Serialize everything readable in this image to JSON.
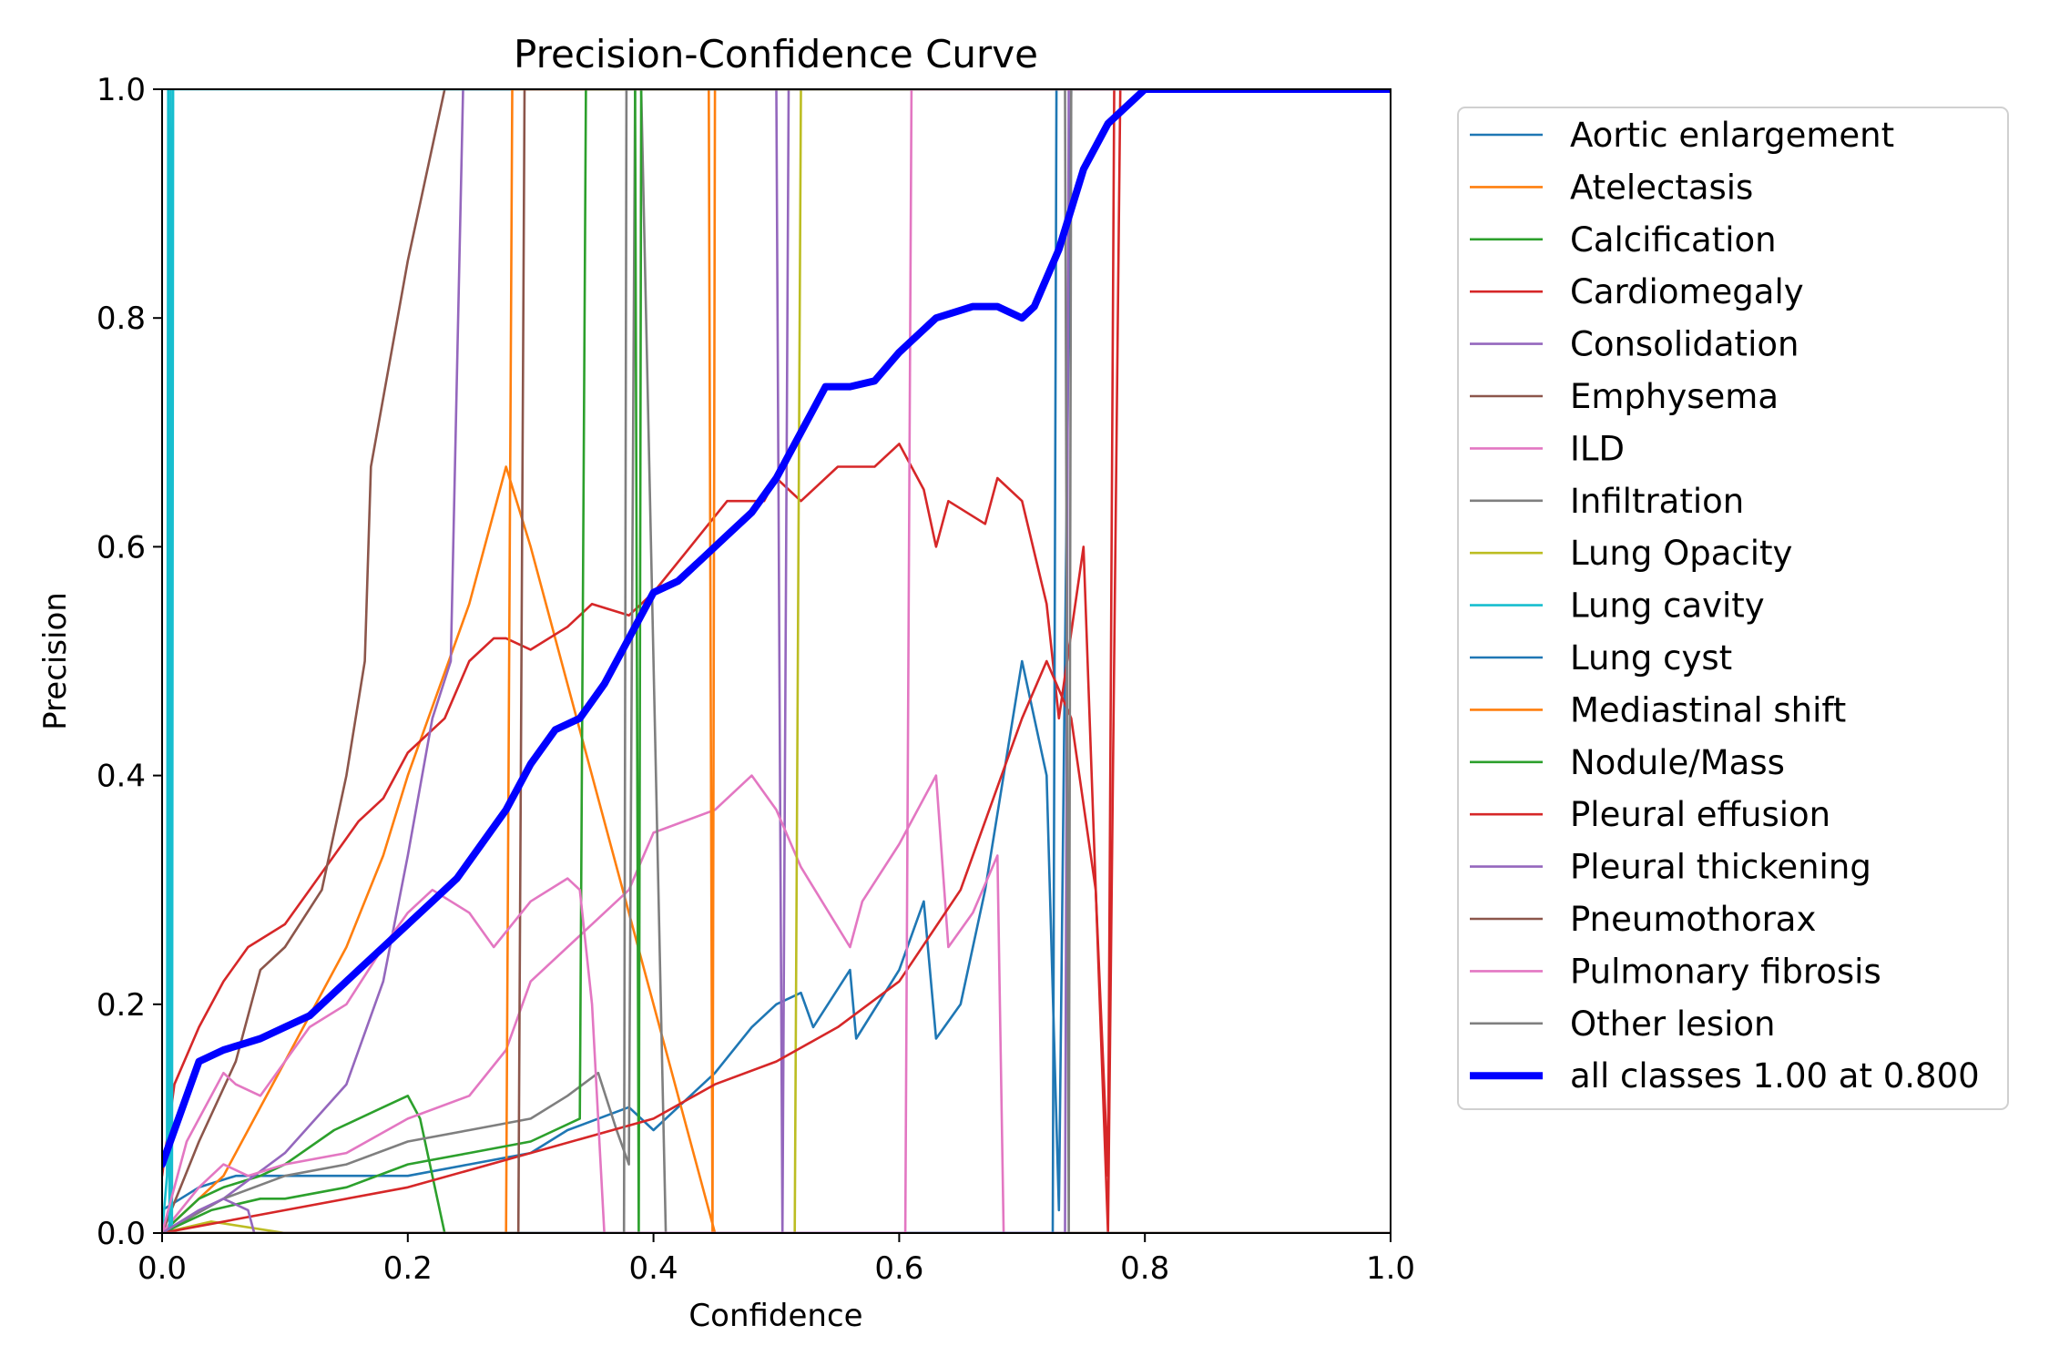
{
  "chart_data": {
    "type": "line",
    "title": "Precision-Confidence Curve",
    "xlabel": "Confidence",
    "ylabel": "Precision",
    "xlim": [
      0,
      1
    ],
    "ylim": [
      0,
      1
    ],
    "x_ticks": [
      0.0,
      0.2,
      0.4,
      0.6,
      0.8,
      1.0
    ],
    "y_ticks": [
      0.0,
      0.2,
      0.4,
      0.6,
      0.8,
      1.0
    ],
    "x_tick_labels": [
      "0.0",
      "0.2",
      "0.4",
      "0.6",
      "0.8",
      "1.0"
    ],
    "y_tick_labels": [
      "0.0",
      "0.2",
      "0.4",
      "0.6",
      "0.8",
      "1.0"
    ],
    "grid": false,
    "legend_position": "outside-right",
    "series": [
      {
        "name": "Aortic enlargement",
        "color": "#1f77b4",
        "x": [
          0.0,
          0.03,
          0.06,
          0.1,
          0.15,
          0.2,
          0.25,
          0.3,
          0.33,
          0.38,
          0.4,
          0.42,
          0.45,
          0.48,
          0.5,
          0.52,
          0.53,
          0.56,
          0.565,
          0.6,
          0.62,
          0.63,
          0.65,
          0.67,
          0.7,
          0.72,
          0.73,
          0.74,
          0.75,
          0.8,
          1.0
        ],
        "y": [
          0.02,
          0.04,
          0.05,
          0.05,
          0.05,
          0.05,
          0.06,
          0.07,
          0.09,
          0.11,
          0.09,
          0.11,
          0.14,
          0.18,
          0.2,
          0.21,
          0.18,
          0.23,
          0.17,
          0.23,
          0.29,
          0.17,
          0.2,
          0.3,
          0.5,
          0.4,
          0.02,
          1.0,
          1.0,
          1.0,
          1.0
        ]
      },
      {
        "name": "Atelectasis",
        "color": "#ff7f0e",
        "x": [
          0.0,
          0.05,
          0.1,
          0.15,
          0.18,
          0.2,
          0.25,
          0.28,
          0.3,
          0.35,
          0.4,
          0.45,
          0.46,
          1.0
        ],
        "y": [
          0.0,
          0.05,
          0.15,
          0.25,
          0.33,
          0.4,
          0.55,
          0.67,
          0.6,
          0.4,
          0.2,
          0.0,
          0.0,
          0.0
        ]
      },
      {
        "name": "Calcification",
        "color": "#2ca02c",
        "x": [
          0.0,
          0.03,
          0.05,
          0.08,
          0.1,
          0.14,
          0.18,
          0.2,
          0.21,
          0.23,
          0.25,
          1.0
        ],
        "y": [
          0.0,
          0.03,
          0.04,
          0.05,
          0.06,
          0.09,
          0.11,
          0.12,
          0.1,
          0.0,
          0.0,
          0.0
        ]
      },
      {
        "name": "Cardiomegaly",
        "color": "#d62728",
        "x": [
          0.0,
          0.01,
          0.03,
          0.05,
          0.07,
          0.1,
          0.12,
          0.14,
          0.16,
          0.18,
          0.2,
          0.23,
          0.25,
          0.27,
          0.28,
          0.3,
          0.33,
          0.35,
          0.38,
          0.4,
          0.43,
          0.46,
          0.49,
          0.5,
          0.52,
          0.55,
          0.58,
          0.6,
          0.62,
          0.63,
          0.64,
          0.67,
          0.68,
          0.7,
          0.72,
          0.73,
          0.75,
          0.77,
          0.78,
          0.8,
          1.0
        ],
        "y": [
          0.05,
          0.13,
          0.18,
          0.22,
          0.25,
          0.27,
          0.3,
          0.33,
          0.36,
          0.38,
          0.42,
          0.45,
          0.5,
          0.52,
          0.52,
          0.51,
          0.53,
          0.55,
          0.54,
          0.56,
          0.6,
          0.64,
          0.64,
          0.66,
          0.64,
          0.67,
          0.67,
          0.69,
          0.65,
          0.6,
          0.64,
          0.62,
          0.66,
          0.64,
          0.55,
          0.45,
          0.6,
          0.0,
          1.0,
          1.0,
          1.0
        ]
      },
      {
        "name": "Consolidation",
        "color": "#9467bd",
        "x": [
          0.0,
          0.05,
          0.1,
          0.15,
          0.18,
          0.2,
          0.22,
          0.235,
          0.245,
          0.26,
          0.3,
          0.5,
          0.505,
          0.51,
          0.6,
          0.8,
          1.0
        ],
        "y": [
          0.0,
          0.03,
          0.07,
          0.13,
          0.22,
          0.33,
          0.45,
          0.5,
          1.0,
          1.0,
          1.0,
          1.0,
          0.0,
          1.0,
          1.0,
          1.0,
          1.0
        ]
      },
      {
        "name": "Emphysema",
        "color": "#8c564b",
        "x": [
          0.0,
          0.03,
          0.06,
          0.08,
          0.1,
          0.13,
          0.15,
          0.165,
          0.17,
          0.2,
          0.23,
          0.24,
          0.3,
          1.0
        ],
        "y": [
          0.0,
          0.08,
          0.15,
          0.23,
          0.25,
          0.3,
          0.4,
          0.5,
          0.67,
          0.85,
          1.0,
          1.0,
          1.0,
          1.0
        ]
      },
      {
        "name": "ILD",
        "color": "#e377c2",
        "x": [
          0.0,
          0.03,
          0.05,
          0.07,
          0.1,
          0.15,
          0.2,
          0.25,
          0.28,
          0.3,
          0.35,
          0.38,
          0.4,
          0.45,
          0.48,
          0.5,
          0.52,
          0.56,
          0.57,
          0.6,
          0.63,
          0.64,
          0.66,
          0.68,
          0.685,
          0.7,
          1.0
        ],
        "y": [
          0.0,
          0.04,
          0.06,
          0.05,
          0.06,
          0.07,
          0.1,
          0.12,
          0.16,
          0.22,
          0.27,
          0.3,
          0.35,
          0.37,
          0.4,
          0.37,
          0.32,
          0.25,
          0.29,
          0.34,
          0.4,
          0.25,
          0.28,
          0.33,
          0.0,
          0.0,
          0.0
        ]
      },
      {
        "name": "Infiltration",
        "color": "#7f7f7f",
        "x": [
          0.0,
          0.05,
          0.1,
          0.15,
          0.2,
          0.25,
          0.3,
          0.33,
          0.355,
          0.37,
          0.38,
          0.385,
          0.39,
          0.41,
          0.42,
          1.0
        ],
        "y": [
          0.0,
          0.03,
          0.05,
          0.06,
          0.08,
          0.09,
          0.1,
          0.12,
          0.14,
          0.09,
          0.06,
          1.0,
          1.0,
          0.0,
          0.0,
          0.0
        ]
      },
      {
        "name": "Lung Opacity",
        "color": "#bcbd22",
        "x": [
          0.0,
          0.02,
          0.04,
          0.1,
          0.5,
          0.515,
          0.52,
          0.6,
          1.0
        ],
        "y": [
          0.0,
          0.005,
          0.01,
          0.0,
          0.0,
          0.0,
          1.0,
          1.0,
          1.0
        ]
      },
      {
        "name": "Lung cavity",
        "color": "#17becf",
        "x": [
          0.0,
          0.004,
          0.005,
          0.006,
          0.007,
          0.008,
          0.009,
          0.05,
          1.0
        ],
        "y": [
          0.0,
          0.05,
          1.0,
          0.0,
          1.0,
          0.0,
          1.0,
          1.0,
          1.0
        ]
      },
      {
        "name": "Lung cyst",
        "color": "#1f77b4",
        "x": [
          0.0,
          0.5,
          0.725,
          0.728,
          0.73,
          0.8,
          1.0
        ],
        "y": [
          0.0,
          0.0,
          0.0,
          1.0,
          1.0,
          1.0,
          1.0
        ]
      },
      {
        "name": "Mediastinal shift",
        "color": "#ff7f0e",
        "x": [
          0.0,
          0.27,
          0.28,
          0.285,
          0.3,
          0.445,
          0.448,
          0.45,
          0.5,
          1.0
        ],
        "y": [
          0.0,
          0.0,
          0.0,
          1.0,
          1.0,
          1.0,
          0.0,
          1.0,
          1.0,
          1.0
        ]
      },
      {
        "name": "Nodule/Mass",
        "color": "#2ca02c",
        "x": [
          0.0,
          0.02,
          0.04,
          0.08,
          0.1,
          0.15,
          0.2,
          0.25,
          0.3,
          0.34,
          0.345,
          0.35,
          0.385,
          0.388,
          0.39,
          0.4,
          1.0
        ],
        "y": [
          0.0,
          0.01,
          0.02,
          0.03,
          0.03,
          0.04,
          0.06,
          0.07,
          0.08,
          0.1,
          1.0,
          1.0,
          1.0,
          0.0,
          1.0,
          1.0,
          1.0
        ]
      },
      {
        "name": "Pleural effusion",
        "color": "#d62728",
        "x": [
          0.0,
          0.1,
          0.2,
          0.3,
          0.4,
          0.45,
          0.5,
          0.55,
          0.6,
          0.65,
          0.7,
          0.72,
          0.74,
          0.76,
          0.77,
          0.775,
          0.8,
          1.0
        ],
        "y": [
          0.0,
          0.02,
          0.04,
          0.07,
          0.1,
          0.13,
          0.15,
          0.18,
          0.22,
          0.3,
          0.45,
          0.5,
          0.45,
          0.3,
          0.05,
          1.0,
          1.0,
          1.0
        ]
      },
      {
        "name": "Pleural thickening",
        "color": "#9467bd",
        "x": [
          0.0,
          0.03,
          0.05,
          0.07,
          0.075,
          0.5,
          0.735,
          0.738,
          0.74,
          0.8,
          1.0
        ],
        "y": [
          0.0,
          0.02,
          0.03,
          0.02,
          0.0,
          0.0,
          0.0,
          1.0,
          1.0,
          1.0,
          1.0
        ]
      },
      {
        "name": "Pneumothorax",
        "color": "#8c564b",
        "x": [
          0.0,
          0.29,
          0.295,
          0.3,
          0.35,
          0.6,
          1.0
        ],
        "y": [
          0.0,
          0.0,
          1.0,
          1.0,
          1.0,
          1.0,
          1.0
        ]
      },
      {
        "name": "Pulmonary fibrosis",
        "color": "#e377c2",
        "x": [
          0.0,
          0.02,
          0.04,
          0.05,
          0.06,
          0.08,
          0.1,
          0.12,
          0.15,
          0.18,
          0.2,
          0.22,
          0.25,
          0.27,
          0.3,
          0.33,
          0.34,
          0.35,
          0.36,
          0.6,
          0.605,
          0.61,
          0.7,
          1.0
        ],
        "y": [
          0.0,
          0.08,
          0.12,
          0.14,
          0.13,
          0.12,
          0.15,
          0.18,
          0.2,
          0.25,
          0.28,
          0.3,
          0.28,
          0.25,
          0.29,
          0.31,
          0.3,
          0.2,
          0.0,
          0.0,
          0.0,
          1.0,
          1.0,
          1.0
        ]
      },
      {
        "name": "Other lesion",
        "color": "#7f7f7f",
        "x": [
          0.0,
          0.376,
          0.378,
          0.38,
          0.385,
          0.5,
          0.6,
          0.735,
          0.738,
          0.74,
          0.8,
          1.0
        ],
        "y": [
          0.0,
          0.0,
          1.0,
          1.0,
          1.0,
          1.0,
          1.0,
          1.0,
          0.0,
          1.0,
          1.0,
          1.0
        ]
      },
      {
        "name": "all classes 1.00 at 0.800",
        "color": "#0000ff",
        "thick": true,
        "x": [
          0.0,
          0.01,
          0.02,
          0.03,
          0.05,
          0.08,
          0.1,
          0.12,
          0.14,
          0.16,
          0.18,
          0.2,
          0.22,
          0.24,
          0.26,
          0.28,
          0.3,
          0.32,
          0.34,
          0.36,
          0.38,
          0.4,
          0.42,
          0.44,
          0.46,
          0.48,
          0.5,
          0.52,
          0.54,
          0.56,
          0.58,
          0.6,
          0.63,
          0.66,
          0.68,
          0.7,
          0.71,
          0.73,
          0.75,
          0.77,
          0.79,
          0.8,
          0.85,
          0.9,
          1.0
        ],
        "y": [
          0.06,
          0.09,
          0.12,
          0.15,
          0.16,
          0.17,
          0.18,
          0.19,
          0.21,
          0.23,
          0.25,
          0.27,
          0.29,
          0.31,
          0.34,
          0.37,
          0.41,
          0.44,
          0.45,
          0.48,
          0.52,
          0.56,
          0.57,
          0.59,
          0.61,
          0.63,
          0.66,
          0.7,
          0.74,
          0.74,
          0.745,
          0.77,
          0.8,
          0.81,
          0.81,
          0.8,
          0.81,
          0.86,
          0.93,
          0.97,
          0.99,
          1.0,
          1.0,
          1.0,
          1.0
        ]
      }
    ]
  }
}
